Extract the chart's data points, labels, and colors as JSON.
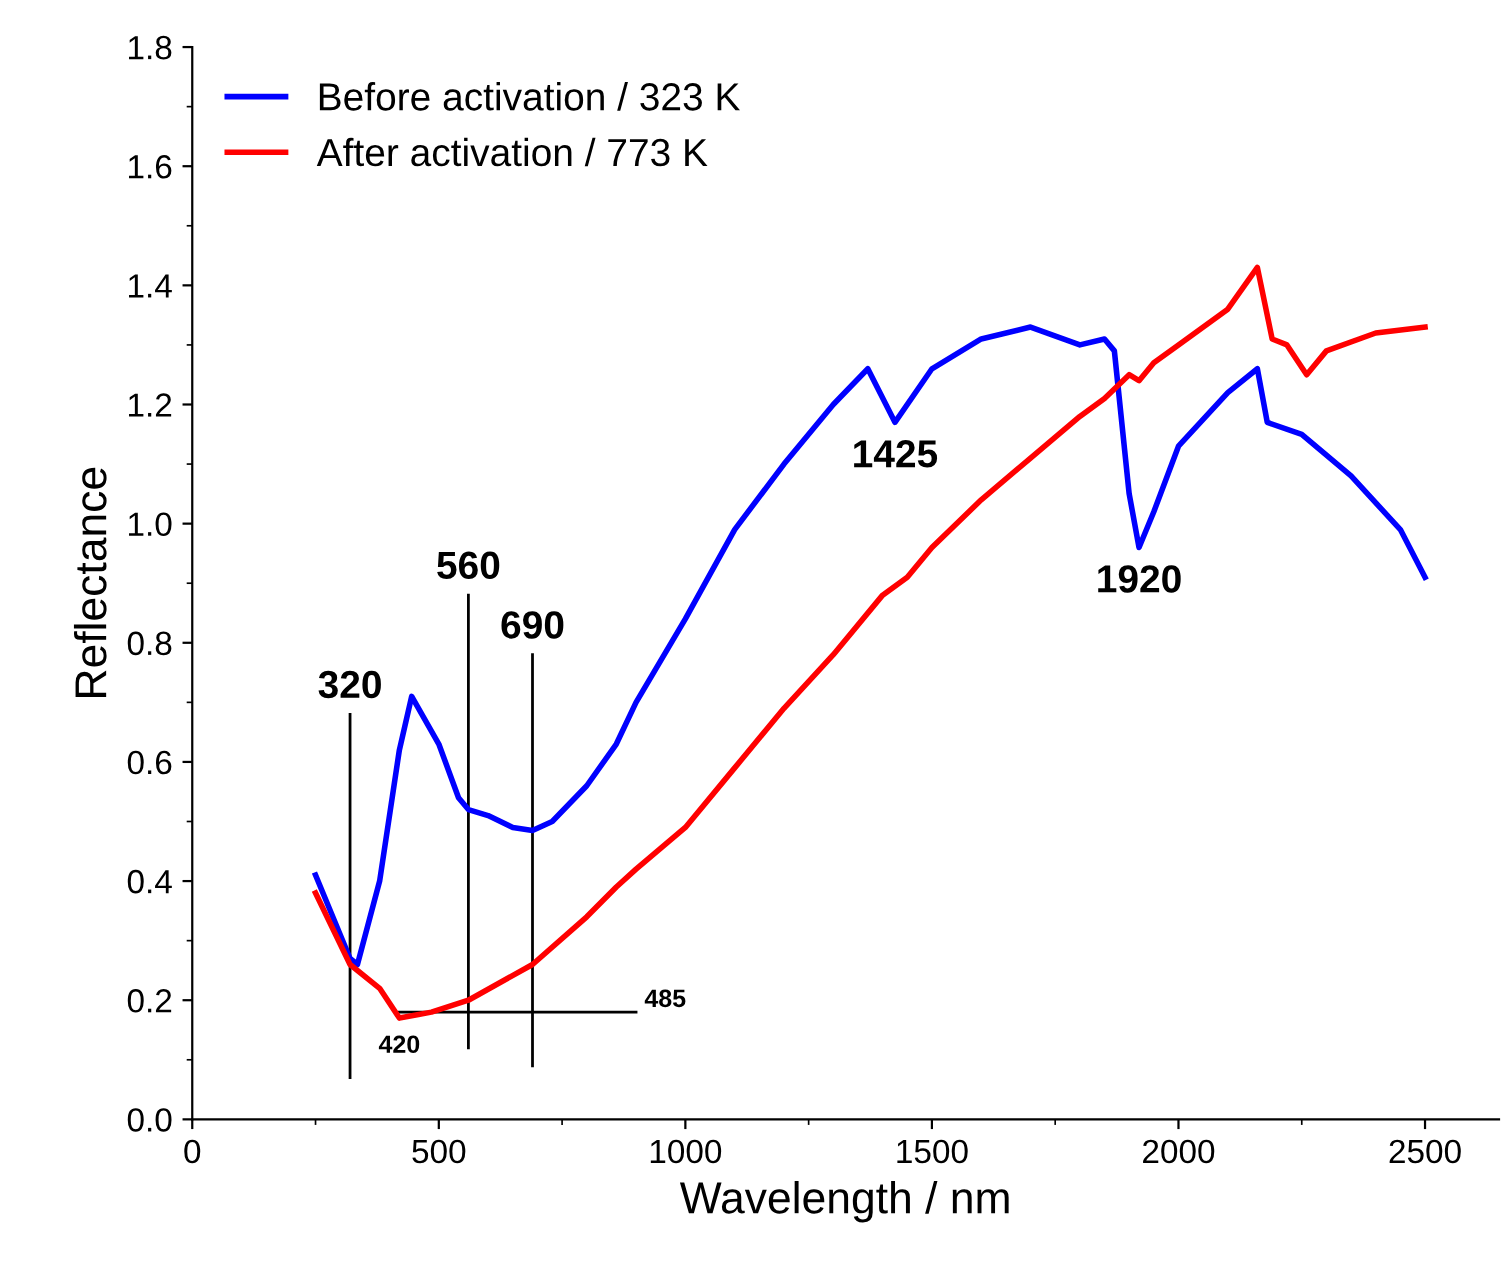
{
  "chart_data": {
    "type": "line",
    "xlabel": "Wavelength / nm",
    "ylabel": "Reflectance",
    "xlim": [
      0,
      2650
    ],
    "xticks": [
      0,
      500,
      1000,
      1500,
      2000,
      2500
    ],
    "ylim": [
      0,
      1.8
    ],
    "yticks": [
      {
        "value": 0,
        "label": "0.0"
      },
      0.2,
      0.4,
      0.6,
      0.8,
      {
        "value": 1,
        "label": "1.0"
      },
      1.2,
      1.4,
      1.6,
      1.8
    ],
    "legend": "top left",
    "grid": false,
    "line_style": "solid",
    "series": [
      {
        "name": "Before activation / 323 K",
        "color": "#0000ff",
        "x": [
          250,
          320,
          335,
          380,
          420,
          445,
          500,
          540,
          560,
          600,
          650,
          690,
          730,
          800,
          860,
          900,
          1000,
          1100,
          1200,
          1300,
          1370,
          1425,
          1500,
          1600,
          1700,
          1800,
          1850,
          1870,
          1900,
          1920,
          1950,
          2000,
          2100,
          2160,
          2180,
          2250,
          2350,
          2450,
          2500
        ],
        "values": [
          0.41,
          0.27,
          0.26,
          0.4,
          0.62,
          0.71,
          0.63,
          0.54,
          0.52,
          0.51,
          0.49,
          0.485,
          0.5,
          0.56,
          0.63,
          0.7,
          0.84,
          0.99,
          1.1,
          1.2,
          1.26,
          1.17,
          1.26,
          1.31,
          1.33,
          1.3,
          1.31,
          1.29,
          1.05,
          0.96,
          1.02,
          1.13,
          1.22,
          1.26,
          1.17,
          1.15,
          1.08,
          0.99,
          0.91
        ]
      },
      {
        "name": "After activation / 773 K",
        "color": "#ff0000",
        "x": [
          250,
          320,
          380,
          420,
          485,
          560,
          690,
          800,
          860,
          900,
          1000,
          1100,
          1200,
          1300,
          1400,
          1450,
          1500,
          1600,
          1700,
          1800,
          1850,
          1900,
          1920,
          1950,
          2000,
          2100,
          2160,
          2190,
          2220,
          2260,
          2300,
          2400,
          2500
        ],
        "values": [
          0.38,
          0.26,
          0.22,
          0.17,
          0.18,
          0.2,
          0.26,
          0.34,
          0.39,
          0.42,
          0.49,
          0.59,
          0.69,
          0.78,
          0.88,
          0.91,
          0.96,
          1.04,
          1.11,
          1.18,
          1.21,
          1.25,
          1.24,
          1.27,
          1.3,
          1.36,
          1.43,
          1.31,
          1.3,
          1.25,
          1.29,
          1.32,
          1.33
        ]
      },
      {
        "color": "#000000",
        "x": [
          320,
          320
        ],
        "values": [
          0.68,
          0.07
        ]
      },
      {
        "color": "#000000",
        "x": [
          560,
          560
        ],
        "values": [
          0.88,
          0.12
        ]
      },
      {
        "color": "#000000",
        "x": [
          690,
          690
        ],
        "values": [
          0.78,
          0.09
        ]
      },
      {
        "color": "#000000",
        "x": [
          420,
          900
        ],
        "values": [
          0.18,
          0.18
        ]
      }
    ],
    "annotations": [
      {
        "text": "320",
        "x": 320,
        "y": 0.68
      },
      {
        "text": "560",
        "x": 560,
        "y": 0.88
      },
      {
        "text": "690",
        "x": 690,
        "y": 0.78
      },
      {
        "text": "1425",
        "x": 1425,
        "y": 1.17
      },
      {
        "text": "1920",
        "x": 1920,
        "y": 0.96
      },
      {
        "text": "420",
        "x": 420,
        "y": 0.17
      },
      {
        "text": "485",
        "x": 900,
        "y": 0.18
      }
    ]
  }
}
